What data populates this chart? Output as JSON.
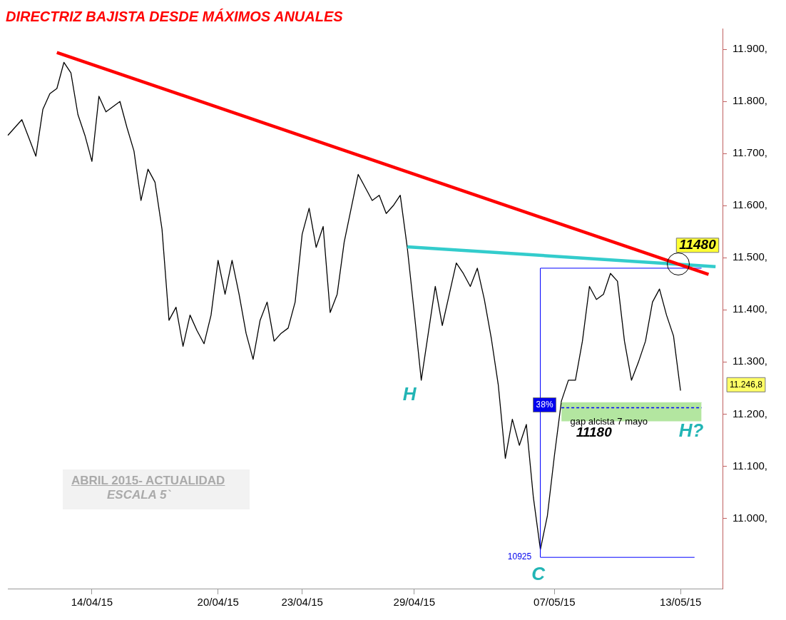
{
  "chart_data": {
    "type": "line",
    "title": "DIRECTRIZ BAJISTA DESDE MÁXIMOS ANUALES",
    "categories": [
      null,
      null,
      null,
      null,
      null,
      null,
      null,
      null,
      null,
      null,
      null,
      null,
      "14/04/15",
      null,
      null,
      null,
      null,
      null,
      null,
      null,
      null,
      null,
      null,
      null,
      null,
      null,
      null,
      null,
      null,
      null,
      "20/04/15",
      null,
      null,
      null,
      null,
      null,
      null,
      null,
      null,
      null,
      null,
      null,
      "23/04/15",
      null,
      null,
      null,
      null,
      null,
      null,
      null,
      null,
      null,
      null,
      null,
      null,
      null,
      null,
      null,
      "29/04/15",
      null,
      null,
      null,
      null,
      null,
      null,
      null,
      null,
      null,
      null,
      null,
      null,
      null,
      null,
      null,
      null,
      null,
      null,
      null,
      "07/05/15",
      null,
      null,
      null,
      null,
      null,
      null,
      null,
      null,
      null,
      null,
      null,
      null,
      null,
      null,
      null,
      null,
      null,
      "13/05/15",
      null,
      null,
      null,
      null,
      null,
      null
    ],
    "ylim": [
      10865,
      11940
    ],
    "yticks": [
      {
        "value": 11000,
        "label": "11.000,"
      },
      {
        "value": 11100,
        "label": "11.100,"
      },
      {
        "value": 11200,
        "label": "11.200,"
      },
      {
        "value": 11300,
        "label": "11.300,"
      },
      {
        "value": 11400,
        "label": "11.400,"
      },
      {
        "value": 11500,
        "label": "11.500,"
      },
      {
        "value": 11600,
        "label": "11.600,"
      },
      {
        "value": 11700,
        "label": "11.700,"
      },
      {
        "value": 11800,
        "label": "11.800,"
      },
      {
        "value": 11900,
        "label": "11.900,"
      }
    ],
    "grid": false,
    "legend": false,
    "series": [
      {
        "color": "#000000",
        "values": [
          11735,
          11750,
          11765,
          11730,
          11695,
          11785,
          11815,
          11825,
          11875,
          11855,
          11775,
          11735,
          11685,
          11810,
          11780,
          11790,
          11800,
          11750,
          11705,
          11610,
          11670,
          11645,
          11555,
          11380,
          11405,
          11330,
          11390,
          11360,
          11335,
          11390,
          11495,
          11430,
          11495,
          11430,
          11355,
          11305,
          11380,
          11415,
          11340,
          11355,
          11365,
          11415,
          11545,
          11595,
          11520,
          11560,
          11395,
          11430,
          11530,
          11595,
          11660,
          11635,
          11610,
          11620,
          11585,
          11600,
          11620,
          11520,
          11395,
          11265,
          11355,
          11445,
          11370,
          11430,
          11490,
          11470,
          11445,
          11480,
          11420,
          11345,
          11255,
          11115,
          11190,
          11140,
          11180,
          11040,
          10940,
          11005,
          11120,
          11225,
          11265,
          11265,
          11340,
          11445,
          11420,
          11430,
          11470,
          11455,
          11340,
          11265,
          11300,
          11340,
          11415,
          11440,
          11390,
          11350,
          11245,
          null,
          null,
          null,
          null,
          null,
          null
        ]
      },
      {
        "type": "line",
        "color": "#b3e6a0",
        "values": [
          null,
          null,
          null,
          null,
          null,
          null,
          null,
          null,
          null,
          null,
          null,
          null,
          null,
          null,
          null,
          null,
          null,
          null,
          null,
          null,
          null,
          null,
          null,
          null,
          null,
          null,
          null,
          null,
          null,
          null,
          null,
          null,
          null,
          null,
          null,
          null,
          null,
          null,
          null,
          null,
          null,
          null,
          null,
          null,
          null,
          null,
          null,
          null,
          null,
          null,
          null,
          null,
          null,
          null,
          null,
          null,
          null,
          null,
          null,
          null,
          null,
          null,
          null,
          null,
          null,
          null,
          null,
          null,
          null,
          null,
          null,
          null,
          null,
          null,
          null,
          null,
          null,
          null,
          null,
          11222,
          null,
          null,
          null,
          null,
          null,
          null,
          null,
          null,
          null,
          null,
          null,
          null,
          null,
          null,
          null,
          null,
          null,
          null,
          null,
          11222,
          null,
          null,
          null
        ],
        "lower": [
          null,
          null,
          null,
          null,
          null,
          null,
          null,
          null,
          null,
          null,
          null,
          null,
          null,
          null,
          null,
          null,
          null,
          null,
          null,
          null,
          null,
          null,
          null,
          null,
          null,
          null,
          null,
          null,
          null,
          null,
          null,
          null,
          null,
          null,
          null,
          null,
          null,
          null,
          null,
          null,
          null,
          null,
          null,
          null,
          null,
          null,
          null,
          null,
          null,
          null,
          null,
          null,
          null,
          null,
          null,
          null,
          null,
          null,
          null,
          null,
          null,
          null,
          null,
          null,
          null,
          null,
          null,
          null,
          null,
          null,
          null,
          null,
          null,
          null,
          null,
          null,
          null,
          null,
          null,
          11186,
          null,
          null,
          null,
          null,
          null,
          null,
          null,
          null,
          null,
          null,
          null,
          null,
          null,
          null,
          null,
          null,
          null,
          null,
          null,
          11186,
          null,
          null,
          null
        ],
        "upper": [
          null,
          null,
          null,
          null,
          null,
          null,
          null,
          null,
          null,
          null,
          null,
          null,
          null,
          null,
          null,
          null,
          null,
          null,
          null,
          null,
          null,
          null,
          null,
          null,
          null,
          null,
          null,
          null,
          null,
          null,
          null,
          null,
          null,
          null,
          null,
          null,
          null,
          null,
          null,
          null,
          null,
          null,
          null,
          null,
          null,
          null,
          null,
          null,
          null,
          null,
          null,
          null,
          null,
          null,
          null,
          null,
          null,
          null,
          null,
          null,
          null,
          null,
          null,
          null,
          null,
          null,
          null,
          null,
          null,
          null,
          null,
          null,
          null,
          null,
          null,
          null,
          null,
          null,
          null,
          11222,
          null,
          null,
          null,
          null,
          null,
          null,
          null,
          null,
          null,
          null,
          null,
          null,
          null,
          null,
          null,
          null,
          null,
          null,
          null,
          11222,
          null,
          null,
          null
        ]
      },
      {
        "type": "line",
        "color": "#ff0000",
        "values": [
          null,
          null,
          null,
          null,
          null,
          null,
          null,
          11894,
          null,
          null,
          null,
          null,
          null,
          null,
          null,
          null,
          null,
          null,
          null,
          null,
          null,
          null,
          null,
          null,
          null,
          null,
          null,
          null,
          null,
          null,
          null,
          null,
          null,
          null,
          null,
          null,
          null,
          null,
          null,
          null,
          null,
          null,
          null,
          null,
          null,
          null,
          null,
          null,
          null,
          null,
          null,
          null,
          null,
          null,
          null,
          null,
          null,
          null,
          null,
          null,
          null,
          null,
          null,
          null,
          null,
          null,
          null,
          null,
          null,
          null,
          null,
          null,
          null,
          null,
          null,
          null,
          null,
          null,
          null,
          null,
          null,
          null,
          null,
          null,
          null,
          null,
          null,
          null,
          null,
          null,
          null,
          null,
          null,
          null,
          null,
          null,
          null,
          null,
          null,
          null,
          11468,
          null,
          null
        ]
      },
      {
        "type": "line",
        "color": "#33cccc",
        "values": [
          null,
          null,
          null,
          null,
          null,
          null,
          null,
          null,
          null,
          null,
          null,
          null,
          null,
          null,
          null,
          null,
          null,
          null,
          null,
          null,
          null,
          null,
          null,
          null,
          null,
          null,
          null,
          null,
          null,
          null,
          null,
          null,
          null,
          null,
          null,
          null,
          null,
          null,
          null,
          null,
          null,
          null,
          null,
          null,
          null,
          null,
          null,
          null,
          null,
          null,
          null,
          null,
          null,
          null,
          null,
          null,
          null,
          11521,
          null,
          null,
          null,
          null,
          null,
          null,
          null,
          null,
          null,
          null,
          null,
          null,
          null,
          null,
          null,
          null,
          null,
          null,
          null,
          null,
          null,
          null,
          null,
          null,
          null,
          null,
          null,
          null,
          null,
          null,
          null,
          null,
          null,
          null,
          null,
          null,
          null,
          null,
          null,
          null,
          null,
          null,
          null,
          11483,
          null
        ]
      },
      {
        "type": "line",
        "color": "#0000ff",
        "values": [
          null,
          null,
          null,
          null,
          null,
          null,
          null,
          null,
          null,
          null,
          null,
          null,
          null,
          null,
          null,
          null,
          null,
          null,
          null,
          null,
          null,
          null,
          null,
          null,
          null,
          null,
          null,
          null,
          null,
          null,
          null,
          null,
          null,
          null,
          null,
          null,
          null,
          null,
          null,
          null,
          null,
          null,
          null,
          null,
          null,
          null,
          null,
          null,
          null,
          null,
          null,
          null,
          null,
          null,
          null,
          null,
          null,
          null,
          null,
          null,
          null,
          null,
          null,
          null,
          null,
          null,
          null,
          null,
          null,
          null,
          null,
          null,
          null,
          null,
          null,
          null,
          11480,
          null,
          null,
          null,
          null,
          null,
          null,
          null,
          null,
          null,
          null,
          null,
          null,
          null,
          null,
          null,
          null,
          null,
          null,
          null,
          null,
          null,
          null,
          11480,
          null,
          null,
          null
        ]
      },
      {
        "type": "line",
        "color": "#0000ff",
        "values": [
          null,
          null,
          null,
          null,
          null,
          null,
          null,
          null,
          null,
          null,
          null,
          null,
          null,
          null,
          null,
          null,
          null,
          null,
          null,
          null,
          null,
          null,
          null,
          null,
          null,
          null,
          null,
          null,
          null,
          null,
          null,
          null,
          null,
          null,
          null,
          null,
          null,
          null,
          null,
          null,
          null,
          null,
          null,
          null,
          null,
          null,
          null,
          null,
          null,
          null,
          null,
          null,
          null,
          null,
          null,
          null,
          null,
          null,
          null,
          null,
          null,
          null,
          null,
          null,
          null,
          null,
          null,
          null,
          null,
          null,
          null,
          null,
          null,
          null,
          null,
          null,
          10925,
          null,
          null,
          null,
          null,
          null,
          null,
          null,
          null,
          null,
          null,
          null,
          null,
          null,
          null,
          null,
          null,
          null,
          null,
          null,
          null,
          null,
          10925,
          null,
          null,
          null,
          null
        ]
      },
      {
        "type": "line",
        "color": "#0000ff",
        "line_style": "dashed",
        "values": [
          null,
          null,
          null,
          null,
          null,
          null,
          null,
          null,
          null,
          null,
          null,
          null,
          null,
          null,
          null,
          null,
          null,
          null,
          null,
          null,
          null,
          null,
          null,
          null,
          null,
          null,
          null,
          null,
          null,
          null,
          null,
          null,
          null,
          null,
          null,
          null,
          null,
          null,
          null,
          null,
          null,
          null,
          null,
          null,
          null,
          null,
          null,
          null,
          null,
          null,
          null,
          null,
          null,
          null,
          null,
          null,
          null,
          null,
          null,
          null,
          null,
          null,
          null,
          null,
          null,
          null,
          null,
          null,
          null,
          null,
          null,
          null,
          null,
          null,
          null,
          null,
          null,
          null,
          null,
          11212,
          null,
          null,
          null,
          null,
          null,
          null,
          null,
          null,
          null,
          null,
          null,
          null,
          null,
          null,
          null,
          null,
          null,
          null,
          null,
          11212,
          null,
          null,
          null
        ]
      }
    ],
    "annotations": [
      "H",
      "C",
      "H?",
      "11180",
      "gap alcista 7 mayo",
      "38%",
      "10925",
      "11480",
      "11.246,8",
      "ABRIL 2015- ACTUALIDAD",
      "ESCALA 5`"
    ]
  }
}
